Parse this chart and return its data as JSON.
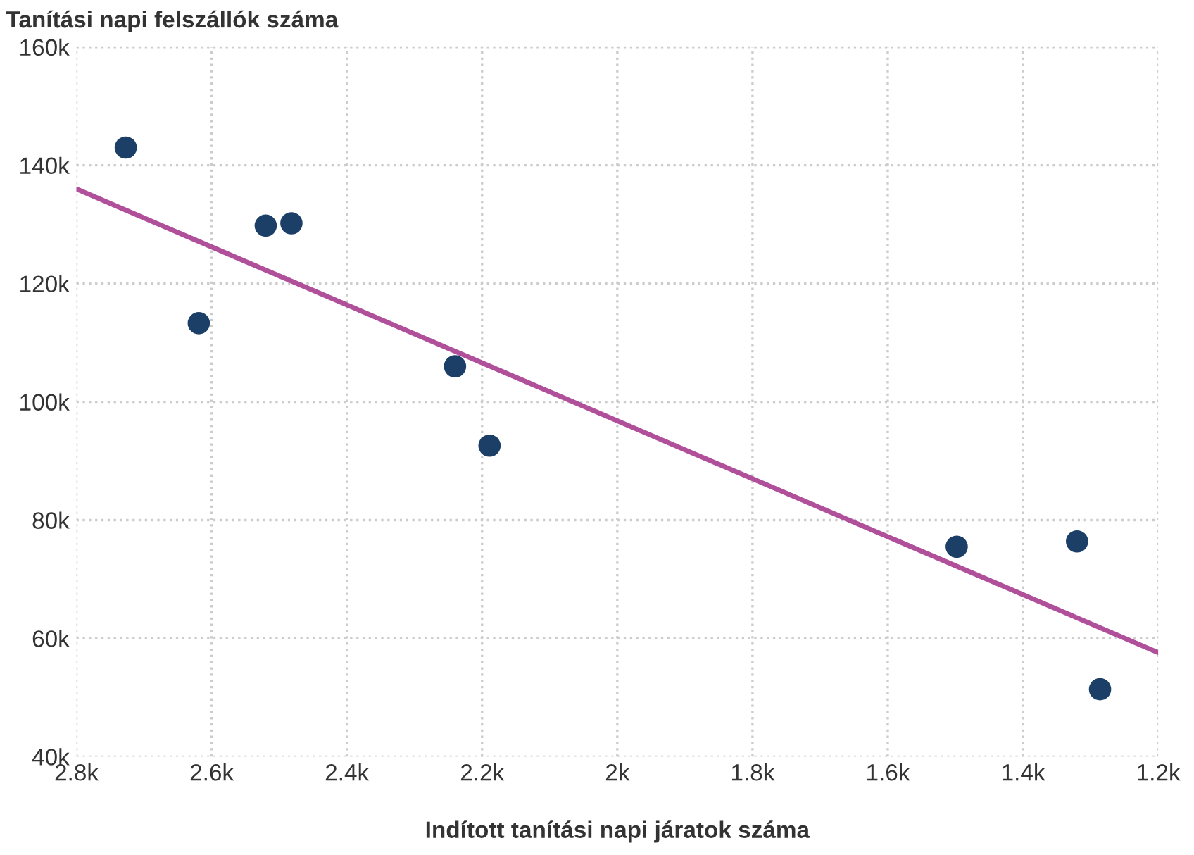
{
  "chart_data": {
    "type": "scatter",
    "ylabel": "Tanítási napi felszállók száma",
    "xlabel": "Indított tanítási napi járatok száma",
    "xlim": [
      2800,
      1200
    ],
    "ylim": [
      40000,
      160000
    ],
    "xticks": [
      {
        "value": 2800,
        "label": "2.8k"
      },
      {
        "value": 2600,
        "label": "2.6k"
      },
      {
        "value": 2400,
        "label": "2.4k"
      },
      {
        "value": 2200,
        "label": "2.2k"
      },
      {
        "value": 2000,
        "label": "2k"
      },
      {
        "value": 1800,
        "label": "1.8k"
      },
      {
        "value": 1600,
        "label": "1.6k"
      },
      {
        "value": 1400,
        "label": "1.4k"
      },
      {
        "value": 1200,
        "label": "1.2k"
      }
    ],
    "yticks": [
      {
        "value": 40000,
        "label": "40k"
      },
      {
        "value": 60000,
        "label": "60k"
      },
      {
        "value": 80000,
        "label": "80k"
      },
      {
        "value": 100000,
        "label": "100k"
      },
      {
        "value": 120000,
        "label": "120k"
      },
      {
        "value": 140000,
        "label": "140k"
      },
      {
        "value": 160000,
        "label": "160k"
      }
    ],
    "grid": true,
    "series": [
      {
        "marker": "circle",
        "color": "#1b3f66",
        "x": [
          2727,
          2619,
          2520,
          2482,
          2240,
          2189,
          1498,
          1320,
          1286
        ],
        "values": [
          143000,
          113300,
          129800,
          130200,
          106000,
          92600,
          75500,
          76400,
          51400
        ]
      },
      {
        "type": "line",
        "color": "#b0509a",
        "line_style": "solid",
        "x": [
          2800,
          1200
        ],
        "values": [
          136000,
          57600
        ]
      }
    ]
  }
}
